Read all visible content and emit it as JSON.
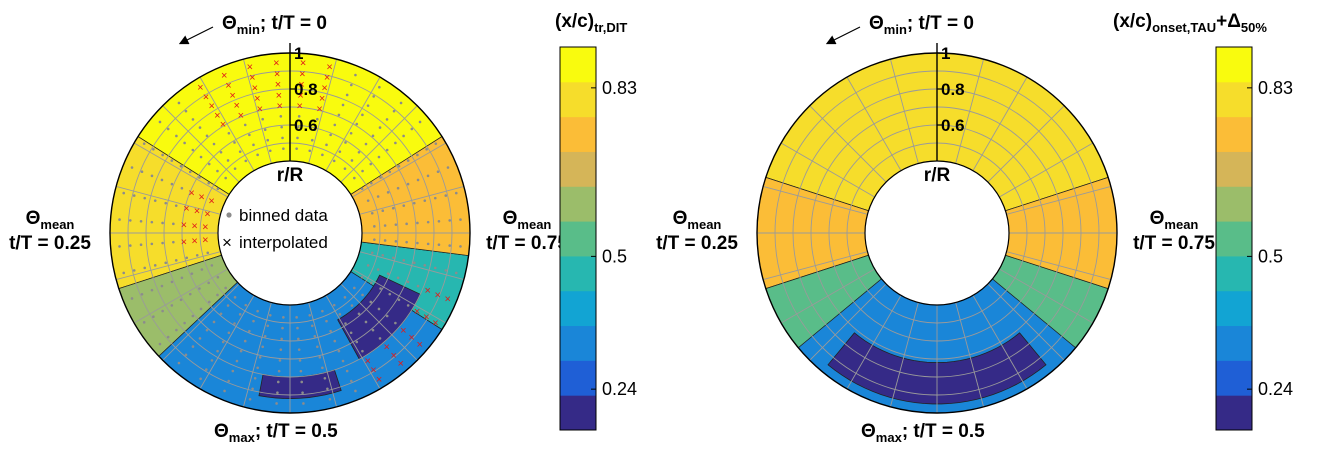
{
  "chart_data": [
    {
      "type": "heatmap",
      "projection": "polar",
      "colorbar_title": "(x/c)",
      "colorbar_title_sub": "tr,DIT",
      "colorbar_ticks": [
        "0.83",
        "0.5",
        "0.24"
      ],
      "colorbar_tick_values": [
        0.83,
        0.5,
        0.24
      ],
      "color_range": [
        0.16,
        0.91
      ],
      "radial_ticks": [
        "1",
        "0.8",
        "0.6"
      ],
      "radial_tick_values": [
        1.0,
        0.8,
        0.6
      ],
      "radial_axis_label": "r/R",
      "radial_range": [
        0.4,
        1.0
      ],
      "legend": [
        "binned data",
        "interpolated"
      ],
      "annotations": {
        "top": {
          "sym": "Θ",
          "sub": "min",
          "rest": "; t/T = 0"
        },
        "bottom": {
          "sym": "Θ",
          "sub": "max",
          "rest": "; t/T = 0.5"
        },
        "left": {
          "sym": "Θ",
          "sub": "mean",
          "rest": "t/T = 0.25"
        },
        "right": {
          "sym": "Θ",
          "sub": "mean",
          "rest": "t/T = 0.75"
        }
      },
      "rotation_arrow": "counterclockwise",
      "zones": [
        {
          "t_start": 0.84,
          "t_end": 0.16,
          "value": 0.88
        },
        {
          "t_start": 0.16,
          "t_end": 0.3,
          "value": 0.78
        },
        {
          "t_start": 0.3,
          "t_end": 0.37,
          "value": 0.6
        },
        {
          "t_start": 0.37,
          "t_end": 0.66,
          "value": 0.3
        },
        {
          "t_start": 0.66,
          "t_end": 0.73,
          "value": 0.5
        },
        {
          "t_start": 0.73,
          "t_end": 0.84,
          "value": 0.76
        }
      ],
      "low_patches": [
        {
          "t_start": 0.47,
          "t_end": 0.55,
          "r_start": 0.8,
          "r_end": 0.92,
          "value": 0.2
        },
        {
          "t_start": 0.58,
          "t_end": 0.68,
          "r_start": 0.55,
          "r_end": 0.8,
          "value": 0.2
        }
      ]
    },
    {
      "type": "heatmap",
      "projection": "polar",
      "colorbar_title": "(x/c)",
      "colorbar_title_sub": "onset,TAU",
      "colorbar_title_tail": "+Δ",
      "colorbar_title_tail_sub": "50%",
      "colorbar_ticks": [
        "0.83",
        "0.5",
        "0.24"
      ],
      "colorbar_tick_values": [
        0.83,
        0.5,
        0.24
      ],
      "color_range": [
        0.16,
        0.91
      ],
      "radial_ticks": [
        "1",
        "0.8",
        "0.6"
      ],
      "radial_tick_values": [
        1.0,
        0.8,
        0.6
      ],
      "radial_axis_label": "r/R",
      "radial_range": [
        0.4,
        1.0
      ],
      "annotations": {
        "top": {
          "sym": "Θ",
          "sub": "min",
          "rest": "; t/T = 0"
        },
        "bottom": {
          "sym": "Θ",
          "sub": "max",
          "rest": "; t/T = 0.5"
        },
        "left": {
          "sym": "Θ",
          "sub": "mean",
          "rest": "t/T = 0.25"
        },
        "right": {
          "sym": "Θ",
          "sub": "mean",
          "rest": "t/T = 0.75"
        }
      },
      "rotation_arrow": "counterclockwise",
      "zones": [
        {
          "t_start": 0.8,
          "t_end": 0.2,
          "value": 0.78
        },
        {
          "t_start": 0.2,
          "t_end": 0.3,
          "value": 0.72
        },
        {
          "t_start": 0.3,
          "t_end": 0.36,
          "value": 0.55
        },
        {
          "t_start": 0.36,
          "t_end": 0.64,
          "value": 0.3
        },
        {
          "t_start": 0.64,
          "t_end": 0.7,
          "value": 0.55
        },
        {
          "t_start": 0.7,
          "t_end": 0.8,
          "value": 0.72
        }
      ],
      "low_patches": [
        {
          "t_start": 0.39,
          "t_end": 0.61,
          "r_start": 0.72,
          "r_end": 0.95,
          "value": 0.2
        }
      ]
    }
  ],
  "colormap": [
    "#352a87",
    "#1f5fd6",
    "#1a86d8",
    "#12a4d3",
    "#27b7b0",
    "#59bd89",
    "#9bbd6a",
    "#d5b558",
    "#fbbd37",
    "#f6dd2b",
    "#f9fb0e"
  ],
  "colors": {
    "grid": "#9a9a9a",
    "binned_marker": "#8c8c8c",
    "interp_marker": "#e11a1a",
    "contour": "#222222"
  }
}
